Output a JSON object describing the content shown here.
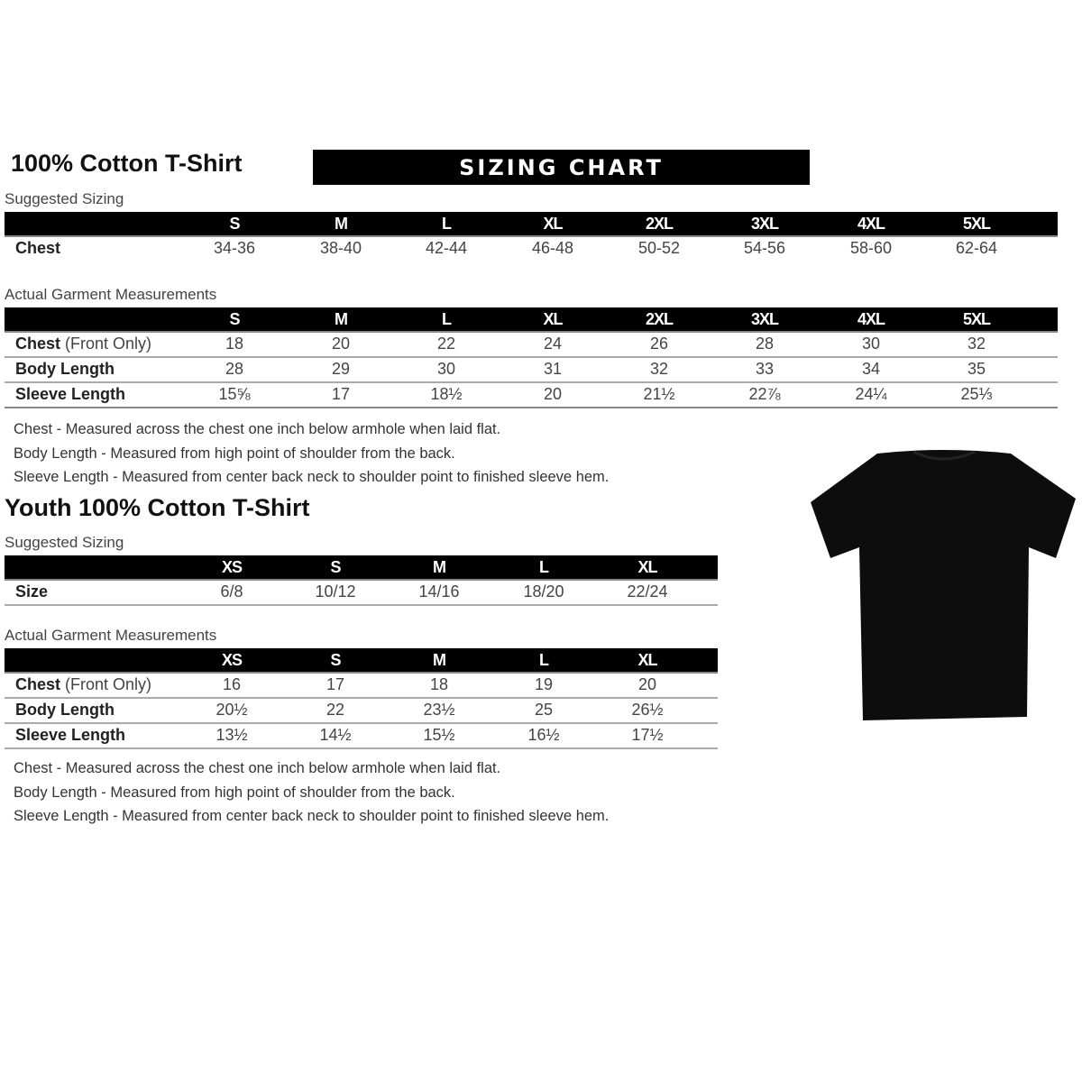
{
  "adult": {
    "title": "100% Cotton T-Shirt",
    "banner": "SIZING CHART",
    "suggested": {
      "label": "Suggested Sizing",
      "sizes": [
        "S",
        "M",
        "L",
        "XL",
        "2XL",
        "3XL",
        "4XL",
        "5XL"
      ],
      "rows": [
        {
          "label": "Chest",
          "values": [
            "34-36",
            "38-40",
            "42-44",
            "46-48",
            "50-52",
            "54-56",
            "58-60",
            "62-64"
          ]
        }
      ]
    },
    "actual": {
      "label": "Actual Garment Measurements",
      "sizes": [
        "S",
        "M",
        "L",
        "XL",
        "2XL",
        "3XL",
        "4XL",
        "5XL"
      ],
      "rows": [
        {
          "label": "Chest",
          "sublabel": "(Front Only)",
          "values": [
            "18",
            "20",
            "22",
            "24",
            "26",
            "28",
            "30",
            "32"
          ]
        },
        {
          "label": "Body Length",
          "values": [
            "28",
            "29",
            "30",
            "31",
            "32",
            "33",
            "34",
            "35"
          ]
        },
        {
          "label": "Sleeve Length",
          "values": [
            "15⅝",
            "17",
            "18½",
            "20",
            "21½",
            "22⅞",
            "24¼",
            "25⅓"
          ]
        }
      ]
    },
    "notes": [
      "Chest - Measured across the chest one inch below armhole when laid flat.",
      "Body Length - Measured from high point of shoulder from the back.",
      "Sleeve Length - Measured from center back neck to shoulder point to finished sleeve hem."
    ]
  },
  "youth": {
    "title": "Youth 100% Cotton T-Shirt",
    "suggested": {
      "label": "Suggested Sizing",
      "sizes": [
        "XS",
        "S",
        "M",
        "L",
        "XL"
      ],
      "rows": [
        {
          "label": "Size",
          "values": [
            "6/8",
            "10/12",
            "14/16",
            "18/20",
            "22/24"
          ]
        }
      ]
    },
    "actual": {
      "label": "Actual Garment Measurements",
      "sizes": [
        "XS",
        "S",
        "M",
        "L",
        "XL"
      ],
      "rows": [
        {
          "label": "Chest",
          "sublabel": "(Front Only)",
          "values": [
            "16",
            "17",
            "18",
            "19",
            "20"
          ]
        },
        {
          "label": "Body Length",
          "values": [
            "20½",
            "22",
            "23½",
            "25",
            "26½"
          ]
        },
        {
          "label": "Sleeve Length",
          "values": [
            "13½",
            "14½",
            "15½",
            "16½",
            "17½"
          ]
        }
      ]
    },
    "notes": [
      "Chest - Measured across the chest one inch below armhole when laid flat.",
      "Body Length - Measured from high point of shoulder from the back.",
      "Sleeve Length - Measured from center back neck to shoulder point to finished sleeve hem."
    ]
  },
  "image": {
    "icon": "tshirt-icon",
    "color": "#0d0d0d"
  }
}
